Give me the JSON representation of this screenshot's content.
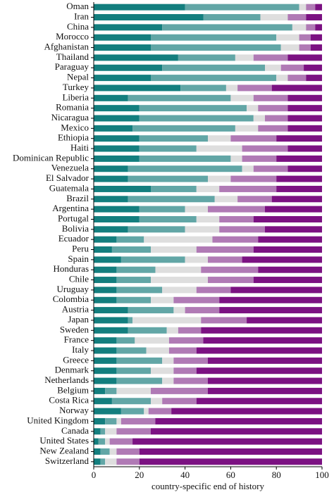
{
  "chart_data": {
    "type": "barh_stacked",
    "xlabel": "country-specific end of history",
    "categories": [
      "Oman",
      "Iran",
      "China",
      "Morocco",
      "Afghanistan",
      "Thailand",
      "Paraguay",
      "Nepal",
      "Turkey",
      "Liberia",
      "Romania",
      "Nicaragua",
      "Mexico",
      "Ethiopia",
      "Haiti",
      "Dominican Republic",
      "Venezuela",
      "El Salvador",
      "Guatemala",
      "Brazil",
      "Argentina",
      "Portugal",
      "Bolivia",
      "Ecuador",
      "Peru",
      "Spain",
      "Honduras",
      "Chile",
      "Uruguay",
      "Colombia",
      "Austria",
      "Japan",
      "Sweden",
      "France",
      "Italy",
      "Greece",
      "Denmark",
      "Netherlands",
      "Belgium",
      "Costa Rica",
      "Norway",
      "United Kingdom",
      "Canada",
      "United States",
      "New Zealand",
      "Switzerland"
    ],
    "series": [
      {
        "color": "#137e7e",
        "values": [
          40,
          48,
          30,
          25,
          25,
          37,
          30,
          25,
          38,
          15,
          20,
          20,
          17,
          20,
          20,
          20,
          15,
          15,
          25,
          15,
          20,
          20,
          15,
          10,
          8,
          12,
          10,
          10,
          10,
          10,
          15,
          15,
          15,
          10,
          10,
          10,
          10,
          10,
          5,
          8,
          12,
          5,
          3,
          2,
          3,
          3
        ]
      },
      {
        "color": "#62a6a6",
        "values": [
          50,
          25,
          57,
          55,
          57,
          25,
          45,
          55,
          20,
          45,
          47,
          50,
          45,
          30,
          25,
          40,
          50,
          35,
          20,
          38,
          20,
          25,
          25,
          12,
          17,
          28,
          17,
          15,
          20,
          15,
          20,
          2,
          17,
          8,
          13,
          20,
          15,
          20,
          5,
          17,
          10,
          5,
          2,
          3,
          4,
          2
        ]
      },
      {
        "color": "#dedede",
        "values": [
          3,
          12,
          6,
          10,
          8,
          8,
          7,
          5,
          5,
          10,
          5,
          5,
          10,
          10,
          20,
          5,
          5,
          10,
          10,
          10,
          10,
          10,
          15,
          30,
          20,
          10,
          20,
          25,
          15,
          10,
          5,
          30,
          5,
          15,
          10,
          5,
          10,
          5,
          15,
          5,
          2,
          2,
          5,
          2,
          3,
          5
        ]
      },
      {
        "color": "#b07ab5",
        "values": [
          4,
          8,
          4,
          5,
          5,
          15,
          10,
          8,
          15,
          15,
          13,
          10,
          13,
          20,
          20,
          15,
          15,
          20,
          25,
          15,
          25,
          15,
          20,
          20,
          25,
          15,
          25,
          20,
          15,
          20,
          15,
          20,
          10,
          15,
          12,
          15,
          10,
          15,
          25,
          15,
          10,
          15,
          15,
          10,
          10,
          10
        ]
      },
      {
        "color": "#7b1182",
        "values": [
          3,
          7,
          3,
          5,
          5,
          15,
          8,
          7,
          22,
          15,
          15,
          15,
          15,
          20,
          15,
          20,
          15,
          20,
          20,
          22,
          25,
          30,
          25,
          28,
          30,
          35,
          28,
          30,
          40,
          45,
          45,
          33,
          53,
          52,
          55,
          50,
          55,
          50,
          50,
          55,
          66,
          73,
          75,
          83,
          80,
          80
        ]
      }
    ],
    "xlim": [
      0,
      100
    ],
    "xticks": [
      0,
      20,
      40,
      60,
      80,
      100
    ]
  }
}
